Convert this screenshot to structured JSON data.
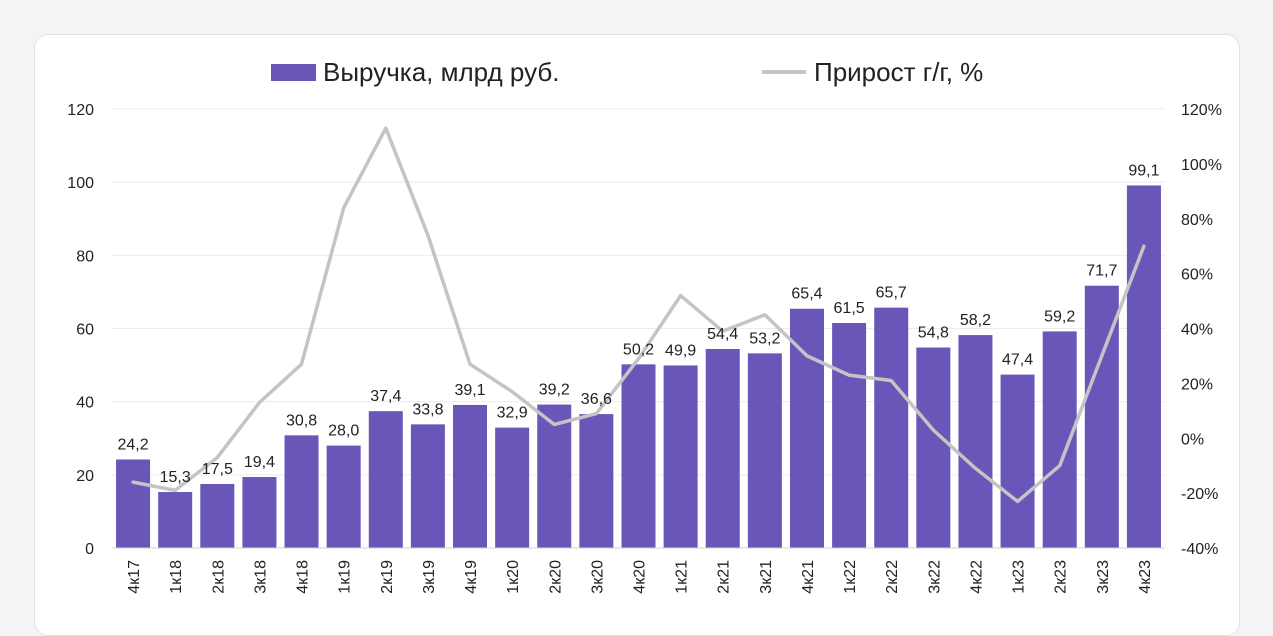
{
  "chart_data": {
    "type": "bar",
    "categories": [
      "4к17",
      "1к18",
      "2к18",
      "3к18",
      "4к18",
      "1к19",
      "2к19",
      "3к19",
      "4к19",
      "1к20",
      "2к20",
      "3к20",
      "4к20",
      "1к21",
      "2к21",
      "3к21",
      "4к21",
      "1к22",
      "2к22",
      "3к22",
      "4к22",
      "1к23",
      "2к23",
      "3к23",
      "4к23"
    ],
    "series": [
      {
        "name": "Выручка, млрд руб.",
        "type": "bar",
        "axis": "left",
        "color": "#6a55b8",
        "values": [
          24.2,
          15.3,
          17.5,
          19.4,
          30.8,
          28.0,
          37.4,
          33.8,
          39.1,
          32.9,
          39.2,
          36.6,
          50.2,
          49.9,
          54.4,
          53.2,
          65.4,
          61.5,
          65.7,
          54.8,
          58.2,
          47.4,
          59.2,
          71.7,
          99.1
        ],
        "labels": [
          "24,2",
          "15,3",
          "17,5",
          "19,4",
          "30,8",
          "28,0",
          "37,4",
          "33,8",
          "39,1",
          "32,9",
          "39,2",
          "36,6",
          "50,2",
          "49,9",
          "54,4",
          "53,2",
          "65,4",
          "61,5",
          "65,7",
          "54,8",
          "58,2",
          "47,4",
          "59,2",
          "71,7",
          "99,1"
        ]
      },
      {
        "name": "Прирост г/г, %",
        "type": "line",
        "axis": "right",
        "color": "#c4c4c4",
        "values": [
          -16,
          -19,
          -7,
          13,
          27,
          84,
          113,
          74,
          27,
          17,
          5,
          9,
          29,
          52,
          39,
          45,
          30,
          23,
          21,
          3,
          -11,
          -23,
          -10,
          30,
          70
        ]
      }
    ],
    "y_left": {
      "min": 0,
      "max": 120,
      "ticks": [
        "0",
        "20",
        "40",
        "60",
        "80",
        "100",
        "120"
      ]
    },
    "y_right": {
      "min": -40,
      "max": 120,
      "ticks": [
        "-40%",
        "-20%",
        "0%",
        "20%",
        "40%",
        "60%",
        "80%",
        "100%",
        "120%"
      ]
    },
    "legend_position": "top-center",
    "grid": "horizontal"
  }
}
